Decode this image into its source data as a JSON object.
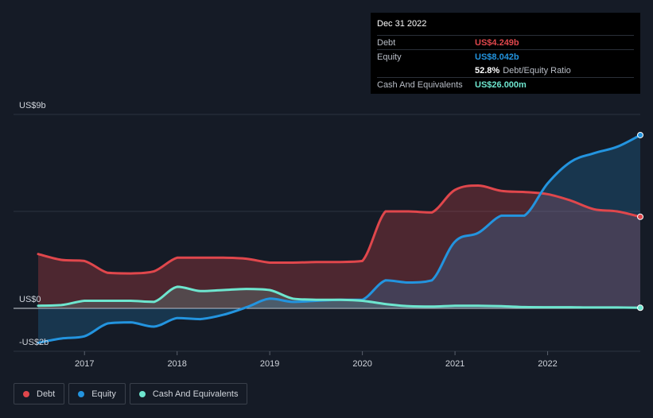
{
  "tooltip": {
    "date": "Dec 31 2022",
    "debt_label": "Debt",
    "debt_value": "US$4.249b",
    "equity_label": "Equity",
    "equity_value": "US$8.042b",
    "ratio_value": "52.8%",
    "ratio_label": "Debt/Equity Ratio",
    "cash_label": "Cash And Equivalents",
    "cash_value": "US$26.000m"
  },
  "colors": {
    "debt": "#e0474c",
    "equity": "#2394df",
    "cash": "#6ee6cf",
    "debt_value_text": "#e0474c",
    "equity_value_text": "#2394df",
    "cash_value_text": "#6ee6cf"
  },
  "legend": [
    {
      "label": "Debt",
      "color": "#e0474c"
    },
    {
      "label": "Equity",
      "color": "#2394df"
    },
    {
      "label": "Cash And Equivalents",
      "color": "#6ee6cf"
    }
  ],
  "chart_data": {
    "type": "area",
    "title": "",
    "xlabel": "",
    "ylabel": "",
    "y_tick_labels": [
      "US$9b",
      "US$0",
      "-US$2b"
    ],
    "y_ticks": [
      9,
      0,
      -2
    ],
    "x_tick_labels": [
      "2017",
      "2018",
      "2019",
      "2020",
      "2021",
      "2022"
    ],
    "x_ticks": [
      2017,
      2018,
      2019,
      2020,
      2021,
      2022
    ],
    "xlim": [
      2016.5,
      2023.0
    ],
    "ylim": [
      -2,
      9
    ],
    "grid": true,
    "legend_position": "bottom-left",
    "series": [
      {
        "name": "Debt",
        "x": [
          2016.5,
          2016.75,
          2017.0,
          2017.25,
          2017.5,
          2017.75,
          2018.0,
          2018.25,
          2018.5,
          2018.75,
          2019.0,
          2019.25,
          2019.5,
          2019.75,
          2020.0,
          2020.25,
          2020.5,
          2020.75,
          2021.0,
          2021.25,
          2021.5,
          2021.75,
          2022.0,
          2022.25,
          2022.5,
          2022.75,
          2023.0
        ],
        "values": [
          2.52,
          2.25,
          2.2,
          1.65,
          1.62,
          1.72,
          2.35,
          2.35,
          2.35,
          2.3,
          2.12,
          2.12,
          2.15,
          2.15,
          2.2,
          4.5,
          4.5,
          4.45,
          5.5,
          5.7,
          5.45,
          5.4,
          5.3,
          5.0,
          4.6,
          4.5,
          4.249
        ]
      },
      {
        "name": "Equity",
        "x": [
          2016.5,
          2016.75,
          2017.0,
          2017.25,
          2017.5,
          2017.75,
          2018.0,
          2018.25,
          2018.5,
          2018.75,
          2019.0,
          2019.25,
          2019.5,
          2019.75,
          2020.0,
          2020.25,
          2020.5,
          2020.75,
          2021.0,
          2021.25,
          2021.5,
          2021.75,
          2022.0,
          2022.25,
          2022.5,
          2022.75,
          2023.0
        ],
        "values": [
          -1.6,
          -1.4,
          -1.3,
          -0.7,
          -0.65,
          -0.85,
          -0.45,
          -0.5,
          -0.3,
          0.05,
          0.45,
          0.3,
          0.35,
          0.4,
          0.4,
          1.3,
          1.2,
          1.3,
          3.1,
          3.5,
          4.3,
          4.3,
          5.8,
          6.8,
          7.2,
          7.5,
          8.042
        ]
      },
      {
        "name": "Cash And Equivalents",
        "x": [
          2016.5,
          2016.75,
          2017.0,
          2017.25,
          2017.5,
          2017.75,
          2018.0,
          2018.25,
          2018.5,
          2018.75,
          2019.0,
          2019.25,
          2019.5,
          2019.75,
          2020.0,
          2020.25,
          2020.5,
          2020.75,
          2021.0,
          2021.25,
          2021.5,
          2021.75,
          2022.0,
          2022.25,
          2022.5,
          2022.75,
          2023.0
        ],
        "values": [
          0.12,
          0.15,
          0.35,
          0.35,
          0.35,
          0.3,
          1.0,
          0.8,
          0.85,
          0.9,
          0.85,
          0.45,
          0.4,
          0.4,
          0.35,
          0.2,
          0.1,
          0.08,
          0.12,
          0.12,
          0.1,
          0.06,
          0.05,
          0.05,
          0.04,
          0.04,
          0.026
        ]
      }
    ]
  }
}
